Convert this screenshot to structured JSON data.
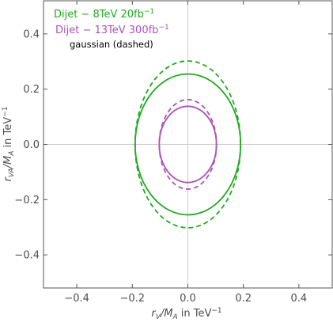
{
  "chart_data": {
    "type": "line",
    "xlabel": {
      "base": "r",
      "sub1": "V",
      "mid": "/M",
      "sub2": "A",
      "tail": " in TeV",
      "sup": "−1"
    },
    "ylabel": {
      "base": "r",
      "sub1": "VA",
      "mid": "/M",
      "sub2": "A",
      "tail": " in TeV",
      "sup": "−1"
    },
    "xlim": [
      -0.52,
      0.52
    ],
    "ylim": [
      -0.52,
      0.52
    ],
    "xticks": [
      "−0.4",
      "−0.2",
      "0.0",
      "0.2",
      "0.4"
    ],
    "xtick_values": [
      -0.4,
      -0.2,
      0.0,
      0.2,
      0.4
    ],
    "yticks": [
      "−0.4",
      "−0.2",
      "0.0",
      "0.2",
      "0.4"
    ],
    "ytick_values": [
      -0.4,
      -0.2,
      0.0,
      0.2,
      0.4
    ],
    "grid": "axes-through-origin",
    "legend_placement": "top-left",
    "legend": [
      {
        "text": "Dijet − 8TeV 20fb",
        "sup": "−1",
        "color": "#22a822"
      },
      {
        "text": "Dijet − 13TeV 300fb",
        "sup": "−1",
        "color": "#a855b8"
      }
    ],
    "annotation": "gaussian (dashed)",
    "series": [
      {
        "name": "Dijet − 8TeV 20fb−1",
        "shape": "ellipse",
        "style": "solid",
        "color": "#22a822",
        "center": [
          0,
          0
        ],
        "rx": 0.19,
        "ry": 0.255
      },
      {
        "name": "Dijet − 8TeV 20fb−1",
        "shape": "ellipse",
        "style": "dashed",
        "color": "#22a822",
        "center": [
          0,
          0
        ],
        "rx": 0.19,
        "ry": 0.302
      },
      {
        "name": "Dijet − 13TeV 300fb−1",
        "shape": "ellipse",
        "style": "solid",
        "color": "#a855b8",
        "center": [
          0,
          0
        ],
        "rx": 0.103,
        "ry": 0.138
      },
      {
        "name": "Dijet − 13TeV 300fb−1",
        "shape": "ellipse",
        "style": "dashed",
        "color": "#a855b8",
        "center": [
          0,
          0
        ],
        "rx": 0.103,
        "ry": 0.162
      }
    ]
  }
}
